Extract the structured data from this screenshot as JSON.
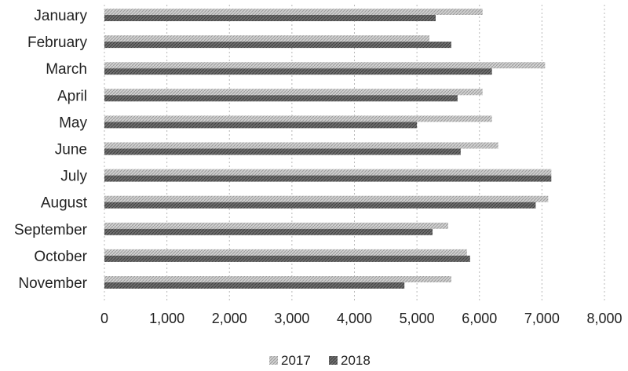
{
  "chart_data": {
    "type": "bar",
    "orientation": "horizontal",
    "categories": [
      "January",
      "February",
      "March",
      "April",
      "May",
      "June",
      "July",
      "August",
      "September",
      "October",
      "November"
    ],
    "series": [
      {
        "name": "2017",
        "values": [
          6050,
          5200,
          7050,
          6050,
          6200,
          6300,
          7150,
          7100,
          5500,
          5800,
          5550
        ],
        "color": "#bcbcbc"
      },
      {
        "name": "2018",
        "values": [
          5300,
          5550,
          6200,
          5650,
          5000,
          5700,
          7150,
          6900,
          5250,
          5850,
          4800
        ],
        "color": "#5a5a5a"
      }
    ],
    "x_ticks": [
      "0",
      "1,000",
      "2,000",
      "3,000",
      "4,000",
      "5,000",
      "6,000",
      "7,000",
      "8,000"
    ],
    "xlim": [
      0,
      8000
    ],
    "grid": true,
    "legend_position": "bottom"
  }
}
